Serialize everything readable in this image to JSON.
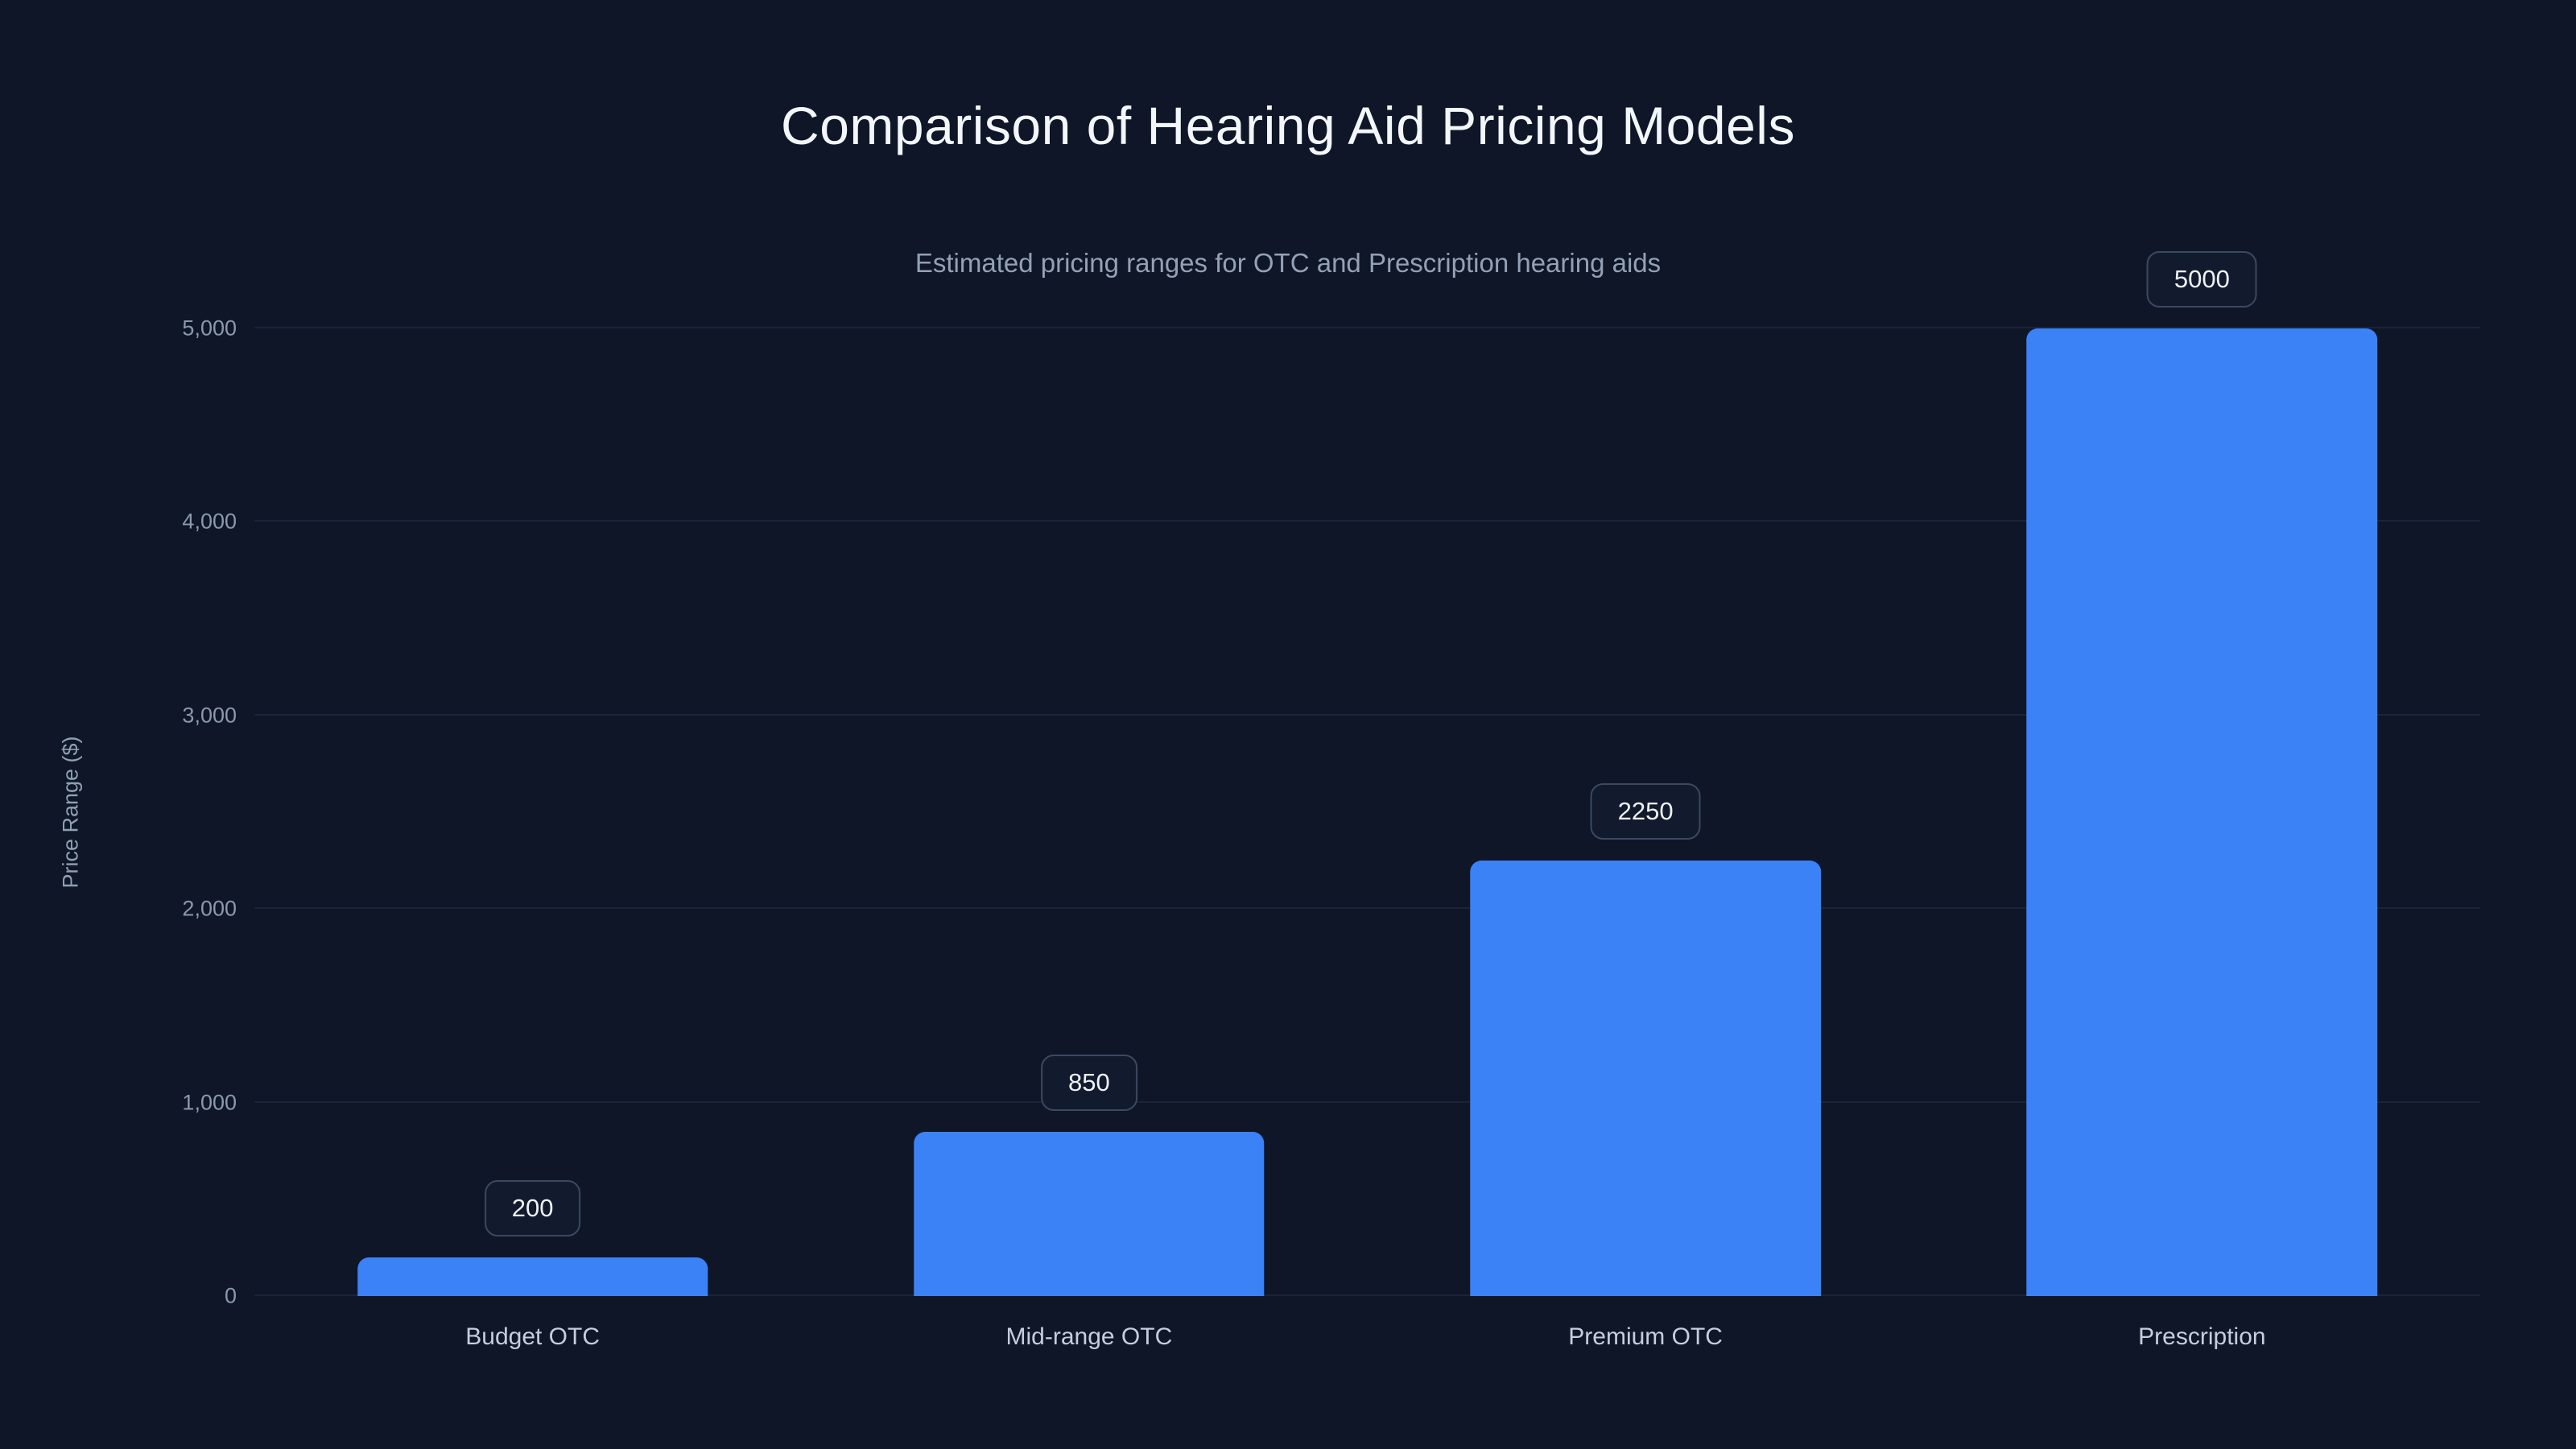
{
  "title": "Comparison of Hearing Aid Pricing Models",
  "subtitle": "Estimated pricing ranges for OTC and Prescription hearing aids",
  "colors": {
    "background": "#0e1628",
    "bar": "#3b82f6",
    "gridline": "#1b2438",
    "title_text": "#f3f6fa",
    "subtitle_text": "#94a1b5",
    "tick_text": "#8b99ad",
    "category_text": "#c4cedc",
    "value_box_border": "#3b4961",
    "value_box_bg": "#121b2e"
  },
  "chart_data": {
    "type": "bar",
    "title": "Comparison of Hearing Aid Pricing Models",
    "subtitle": "Estimated pricing ranges for OTC and Prescription hearing aids",
    "categories": [
      "Budget OTC",
      "Mid-range OTC",
      "Premium OTC",
      "Prescription"
    ],
    "values": [
      200,
      850,
      2250,
      5000
    ],
    "value_labels": [
      "200",
      "850",
      "2250",
      "5000"
    ],
    "xlabel": "",
    "ylabel": "Price Range ($)",
    "ylim": [
      0,
      5000
    ],
    "yticks": [
      0,
      1000,
      2000,
      3000,
      4000,
      5000
    ],
    "ytick_labels": [
      "0",
      "1,000",
      "2,000",
      "3,000",
      "4,000",
      "5,000"
    ],
    "grid": true,
    "legend": "none",
    "bar_color": "#3b82f6"
  }
}
